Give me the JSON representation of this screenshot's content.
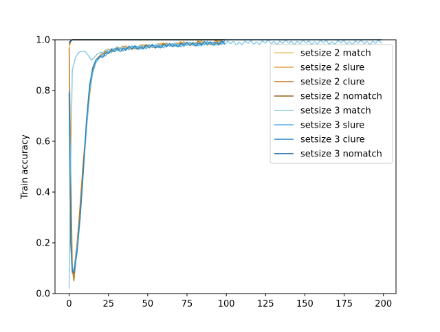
{
  "chart_data": {
    "type": "line",
    "title": "",
    "xlabel": "",
    "ylabel": "Train accuracy",
    "xlim": [
      -9,
      208
    ],
    "ylim": [
      0,
      1.0
    ],
    "xticks": [
      0,
      25,
      50,
      75,
      100,
      125,
      150,
      175,
      200
    ],
    "yticks": [
      0.0,
      0.2,
      0.4,
      0.6,
      0.8,
      1.0
    ],
    "xtick_labels": [
      "0",
      "25",
      "50",
      "75",
      "100",
      "125",
      "150",
      "175",
      "200"
    ],
    "ytick_labels": [
      "0.0",
      "0.2",
      "0.4",
      "0.6",
      "0.8",
      "1.0"
    ],
    "grid": false,
    "legend_position": "upper-right",
    "series": [
      {
        "name": "setsize 2 match",
        "color": "#f0c577",
        "epochs": 100,
        "points": [
          [
            0,
            0.97
          ],
          [
            1,
            0.99
          ],
          [
            2,
            1.0
          ],
          [
            5,
            1.0
          ],
          [
            20,
            1.0
          ],
          [
            50,
            1.0
          ],
          [
            99,
            1.0
          ]
        ]
      },
      {
        "name": "setsize 2 slure",
        "color": "#e0a040",
        "epochs": 100,
        "points": [
          [
            0,
            0.75
          ],
          [
            1,
            0.2
          ],
          [
            2,
            0.08
          ],
          [
            3,
            0.09
          ],
          [
            5,
            0.2
          ],
          [
            7,
            0.33
          ],
          [
            9,
            0.5
          ],
          [
            11,
            0.65
          ],
          [
            13,
            0.78
          ],
          [
            15,
            0.88
          ],
          [
            17,
            0.92
          ],
          [
            20,
            0.94
          ],
          [
            25,
            0.955
          ],
          [
            30,
            0.965
          ],
          [
            40,
            0.97
          ],
          [
            50,
            0.975
          ],
          [
            60,
            0.98
          ],
          [
            75,
            0.985
          ],
          [
            99,
            0.99
          ]
        ]
      },
      {
        "name": "setsize 2 clure",
        "color": "#c47a1a",
        "epochs": 100,
        "points": [
          [
            0,
            0.97
          ],
          [
            1,
            0.5
          ],
          [
            2,
            0.1
          ],
          [
            3,
            0.05
          ],
          [
            5,
            0.18
          ],
          [
            7,
            0.35
          ],
          [
            9,
            0.52
          ],
          [
            11,
            0.66
          ],
          [
            13,
            0.8
          ],
          [
            15,
            0.88
          ],
          [
            17,
            0.92
          ],
          [
            20,
            0.94
          ],
          [
            25,
            0.95
          ],
          [
            30,
            0.965
          ],
          [
            40,
            0.97
          ],
          [
            50,
            0.975
          ],
          [
            60,
            0.98
          ],
          [
            75,
            0.985
          ],
          [
            99,
            0.99
          ]
        ]
      },
      {
        "name": "setsize 2 nomatch",
        "color": "#9a5c12",
        "epochs": 100,
        "points": [
          [
            0,
            0.98
          ],
          [
            1,
            0.995
          ],
          [
            2,
            1.0
          ],
          [
            10,
            1.0
          ],
          [
            30,
            1.0
          ],
          [
            60,
            1.0
          ],
          [
            99,
            1.0
          ]
        ]
      },
      {
        "name": "setsize 3 match",
        "color": "#8ecae6",
        "epochs": 200,
        "points": [
          [
            0,
            0.02
          ],
          [
            1,
            0.5
          ],
          [
            2,
            0.88
          ],
          [
            4,
            0.93
          ],
          [
            6,
            0.95
          ],
          [
            8,
            0.955
          ],
          [
            10,
            0.955
          ],
          [
            12,
            0.94
          ],
          [
            14,
            0.92
          ],
          [
            16,
            0.93
          ],
          [
            18,
            0.945
          ],
          [
            20,
            0.95
          ],
          [
            25,
            0.96
          ],
          [
            30,
            0.965
          ],
          [
            40,
            0.97
          ],
          [
            50,
            0.975
          ],
          [
            60,
            0.978
          ],
          [
            75,
            0.982
          ],
          [
            100,
            0.987
          ],
          [
            125,
            0.99
          ],
          [
            150,
            0.99
          ],
          [
            175,
            0.99
          ],
          [
            199,
            0.99
          ]
        ]
      },
      {
        "name": "setsize 3 slure",
        "color": "#5db4e8",
        "epochs": 100,
        "points": [
          [
            0,
            0.8
          ],
          [
            1,
            0.2
          ],
          [
            2,
            0.1
          ],
          [
            3,
            0.09
          ],
          [
            5,
            0.18
          ],
          [
            7,
            0.3
          ],
          [
            9,
            0.48
          ],
          [
            11,
            0.65
          ],
          [
            13,
            0.8
          ],
          [
            15,
            0.87
          ],
          [
            17,
            0.91
          ],
          [
            20,
            0.935
          ],
          [
            25,
            0.95
          ],
          [
            30,
            0.96
          ],
          [
            40,
            0.968
          ],
          [
            50,
            0.972
          ],
          [
            60,
            0.976
          ],
          [
            75,
            0.982
          ],
          [
            99,
            0.988
          ]
        ]
      },
      {
        "name": "setsize 3 clure",
        "color": "#2a86c0",
        "epochs": 100,
        "points": [
          [
            0,
            0.79
          ],
          [
            1,
            0.2
          ],
          [
            2,
            0.09
          ],
          [
            3,
            0.08
          ],
          [
            5,
            0.16
          ],
          [
            7,
            0.3
          ],
          [
            9,
            0.48
          ],
          [
            11,
            0.68
          ],
          [
            13,
            0.82
          ],
          [
            15,
            0.89
          ],
          [
            17,
            0.92
          ],
          [
            20,
            0.935
          ],
          [
            25,
            0.95
          ],
          [
            30,
            0.96
          ],
          [
            40,
            0.968
          ],
          [
            50,
            0.972
          ],
          [
            60,
            0.976
          ],
          [
            75,
            0.982
          ],
          [
            99,
            0.988
          ]
        ]
      },
      {
        "name": "setsize 3 nomatch",
        "color": "#0d5a96",
        "epochs": 200,
        "points": [
          [
            0,
            0.99
          ],
          [
            1,
            0.995
          ],
          [
            2,
            1.0
          ],
          [
            10,
            1.0
          ],
          [
            50,
            1.0
          ],
          [
            100,
            1.0
          ],
          [
            150,
            1.0
          ],
          [
            199,
            1.0
          ]
        ]
      }
    ]
  }
}
